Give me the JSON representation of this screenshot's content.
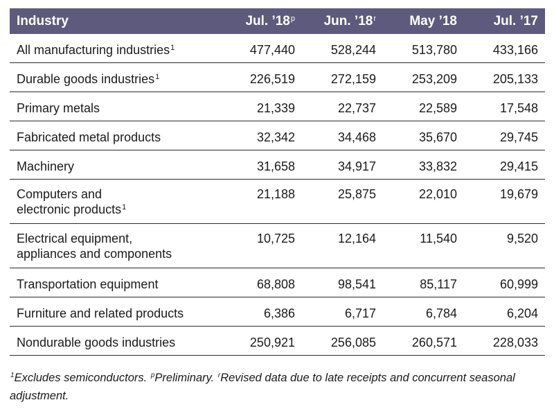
{
  "table": {
    "header": {
      "industry": "Industry",
      "columns": [
        {
          "label": "Jul. ’18",
          "sup": "p"
        },
        {
          "label": "Jun. ’18",
          "sup": "r"
        },
        {
          "label": "May ’18",
          "sup": ""
        },
        {
          "label": "Jul. ’17",
          "sup": ""
        }
      ]
    },
    "rows": [
      {
        "line1": "All manufacturing industries",
        "line2": "",
        "sup": "1",
        "values": [
          "477,440",
          "528,244",
          "513,780",
          "433,166"
        ]
      },
      {
        "line1": "Durable goods industries",
        "line2": "",
        "sup": "1",
        "values": [
          "226,519",
          "272,159",
          "253,209",
          "205,133"
        ]
      },
      {
        "line1": "Primary metals",
        "line2": "",
        "sup": "",
        "values": [
          "21,339",
          "22,737",
          "22,589",
          "17,548"
        ]
      },
      {
        "line1": "Fabricated metal products",
        "line2": "",
        "sup": "",
        "values": [
          "32,342",
          "34,468",
          "35,670",
          "29,745"
        ]
      },
      {
        "line1": "Machinery",
        "line2": "",
        "sup": "",
        "values": [
          "31,658",
          "34,917",
          "33,832",
          "29,415"
        ]
      },
      {
        "line1": "Computers and",
        "line2": "electronic products",
        "sup": "1",
        "values": [
          "21,188",
          "25,875",
          "22,010",
          "19,679"
        ]
      },
      {
        "line1": "Electrical equipment,",
        "line2": "appliances and components",
        "sup": "",
        "values": [
          "10,725",
          "12,164",
          "11,540",
          "9,520"
        ]
      },
      {
        "line1": "Transportation equipment",
        "line2": "",
        "sup": "",
        "values": [
          "68,808",
          "98,541",
          "85,117",
          "60,999"
        ]
      },
      {
        "line1": "Furniture and related products",
        "line2": "",
        "sup": "",
        "values": [
          "6,386",
          "6,717",
          "6,784",
          "6,204"
        ]
      },
      {
        "line1": "Nondurable goods industries",
        "line2": "",
        "sup": "",
        "values": [
          "250,921",
          "256,085",
          "260,571",
          "228,033"
        ]
      }
    ]
  },
  "footnote": {
    "sup1": "1",
    "text1": "Excludes semiconductors. ",
    "sup2": "p",
    "text2": "Preliminary. ",
    "sup3": "r",
    "text3": "Revised data due to late receipts and concurrent seasonal adjustment."
  },
  "colors": {
    "header_bg": "#5e5a7d",
    "header_text": "#ffffff",
    "rule": "#2a2a2a"
  }
}
